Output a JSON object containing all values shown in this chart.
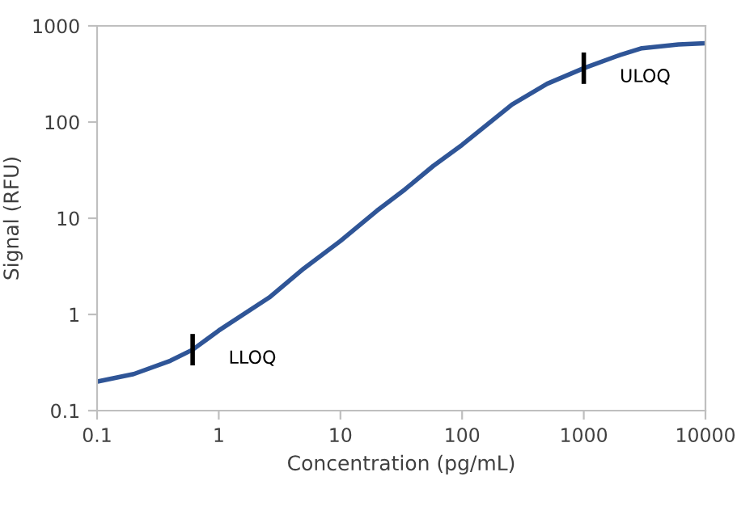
{
  "chart_data": {
    "type": "line",
    "xlabel": "Concentration (pg/mL)",
    "ylabel": "Signal (RFU)",
    "log": "xy",
    "x": [
      0.1,
      0.2,
      0.4,
      0.61,
      1,
      2.6,
      5,
      10,
      20,
      34,
      58,
      100,
      257,
      500,
      1000,
      2000,
      3000,
      6000,
      10000
    ],
    "series": [
      {
        "color": "#2f5597",
        "values": [
          0.2,
          0.24,
          0.33,
          0.43,
          0.68,
          1.5,
          3,
          5.8,
          12,
          20,
          35,
          58,
          152,
          250,
          363,
          500,
          585,
          640,
          660
        ]
      }
    ],
    "xlim": [
      0.1,
      10000
    ],
    "xticks": [
      0.1,
      1,
      10,
      100,
      1000,
      10000
    ],
    "ylim": [
      0.1,
      1000
    ],
    "yticks": [
      0.1,
      1,
      10,
      100,
      1000
    ],
    "grid": false,
    "marker": "none",
    "line_style": "solid",
    "annotations": [
      {
        "text": "LLOQ",
        "x": 0.61,
        "y": 0.43
      },
      {
        "text": "ULOQ",
        "x": 1000,
        "y": 363
      }
    ]
  }
}
